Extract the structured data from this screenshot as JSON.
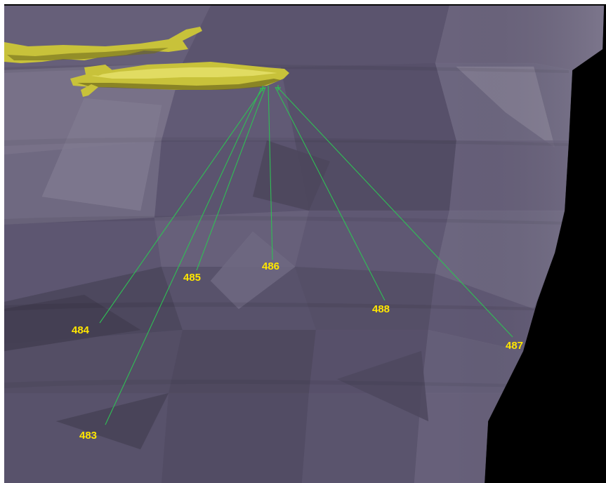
{
  "viewport": {
    "background_color": "#000000",
    "surface_color": "#5f5873",
    "surface_light_color": "#8079a0",
    "surface_dark_color": "#3d3850",
    "edge_color": "#ffffff",
    "vessel_color": "#c8c23a",
    "vessel_highlight_color": "#eeea78",
    "vessel_shadow_color": "#6f6a1c",
    "line_color": "#2fbf55",
    "label_color": "#ffe600"
  },
  "electrodes": [
    {
      "id": "483",
      "label": "483"
    },
    {
      "id": "484",
      "label": "484"
    },
    {
      "id": "485",
      "label": "485"
    },
    {
      "id": "486",
      "label": "486"
    },
    {
      "id": "487",
      "label": "487"
    },
    {
      "id": "488",
      "label": "488"
    }
  ]
}
